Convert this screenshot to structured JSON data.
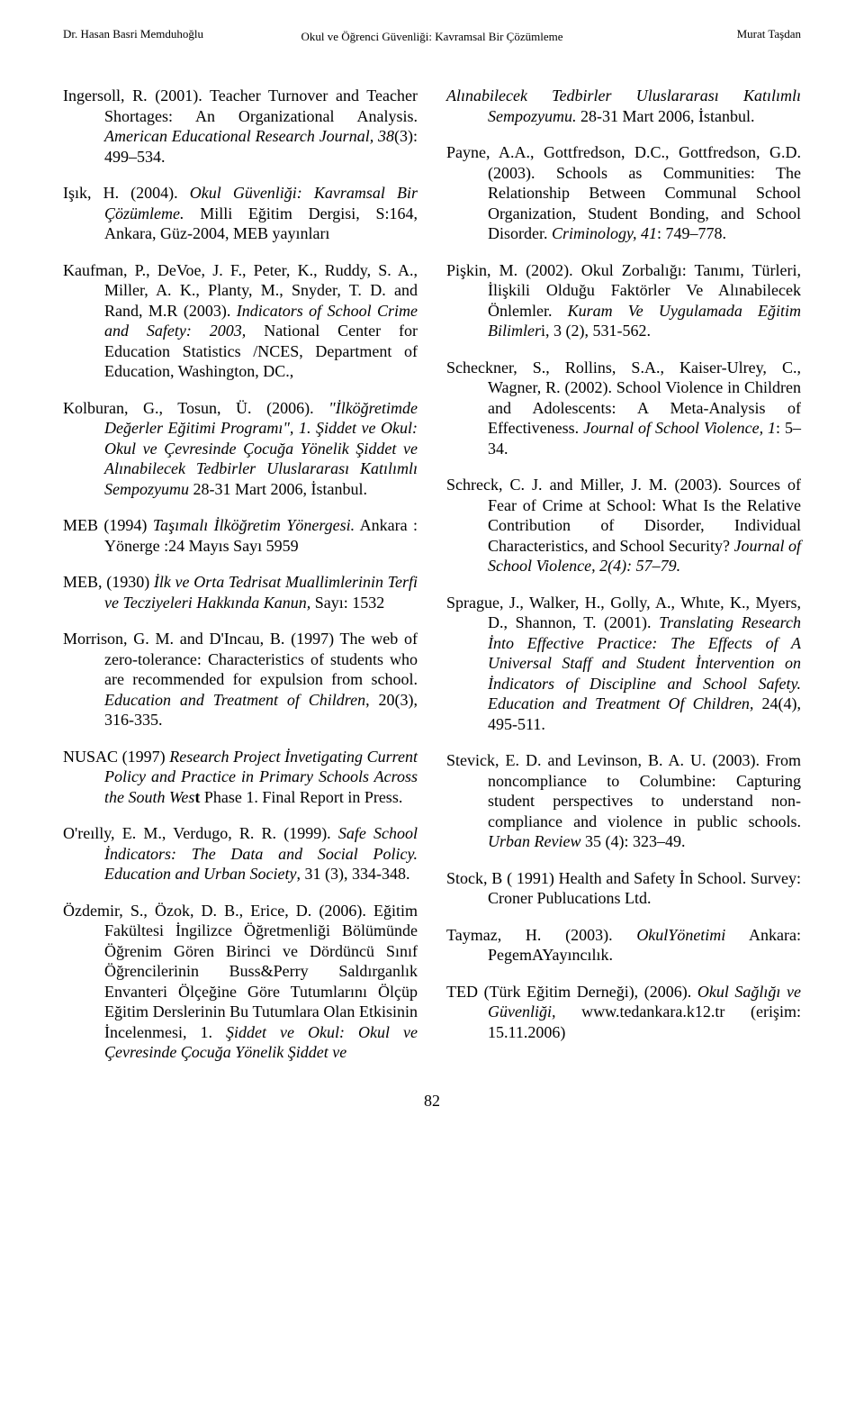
{
  "header": {
    "left": "Dr. Hasan Basri Memduhoğlu",
    "center": "Okul ve Öğrenci Güvenliği: Kavramsal Bir Çözümleme",
    "right": "Murat Taşdan"
  },
  "pageNumber": "82",
  "leftRefs": [
    "Ingersoll, R. (2001). Teacher Turnover and Teacher Shortages: An Organizational Analysis. <i>American Educational Research Journal, 38</i>(3): 499–534.",
    "Işık, H. (2004). <i>Okul Güvenliği: Kavramsal Bir Çözümleme.</i> Milli Eğitim Dergisi, S:164, Ankara, Güz-2004, MEB yayınları",
    "Kaufman, P., DeVoe, J. F., Peter, K., Ruddy, S. A., Miller, A. K., Planty, M., Snyder, T. D. and Rand, M.R (2003). <i>Indicators of School Crime and Safety: 2003,</i> National Center for Education Statistics /NCES, Department of Education, Washington, DC.,",
    "Kolburan, G., Tosun, Ü. (2006). <i>\"İlköğretimde Değerler Eğitimi Programı\", 1. Şiddet ve Okul: Okul ve Çevresinde Çocuğa Yönelik Şiddet ve Alınabilecek Tedbirler Uluslararası Katılımlı Sempozyumu</i> 28-31 Mart 2006, İstanbul.",
    "MEB (1994) <i>Taşımalı İlköğretim Yönergesi.</i> Ankara : Yönerge :24 Mayıs Sayı 5959",
    "MEB, (1930) <i>İlk ve Orta Tedrisat Muallimlerinin Terfi ve Tecziyeleri Hakkında Kanun,</i> Sayı: 1532",
    "Morrison, G. M. and D'Incau, B. (1997) The web of zero-tolerance: Characteristics of students who are recommended for expulsion from school. <i>Education and Treatment of Children</i>, 20(3), 316-335.",
    "NUSAC (1997) <i>Research Project İnvetigating Current Policy and Practice in Primary Schools Across the South Wes</i><b>t</b> Phase 1. Final Report in Press.",
    "O'reılly, E. M., Verdugo, R. R. (1999). <i>Safe School İndicators: The Data and Social Policy. Education and Urban Society</i>, 31 (3), 334-348.",
    "Özdemir, S., Özok, D. B., Erice, D. (2006). Eğitim Fakültesi İngilizce Öğretmenliği Bölümünde Öğrenim Gören Birinci ve Dördüncü Sınıf Öğrencilerinin Buss&Perry Saldırganlık Envanteri Ölçeğine Göre Tutumlarını Ölçüp Eğitim Derslerinin Bu Tutumlara Olan Etkisinin İncelenmesi, 1. <i>Şiddet ve Okul: Okul ve Çevresinde Çocuğa Yönelik Şiddet ve</i>"
  ],
  "rightRefs": [
    "<i>Alınabilecek Tedbirler Uluslararası Katılımlı Sempozyumu.</i> 28-31 Mart 2006, İstanbul.",
    "Payne, A.A., Gottfredson, D.C., Gottfredson, G.D. (2003). Schools as Communities: The Relationship Between Communal School Organization, Student Bonding, and School Disorder. <i>Criminology, 41</i>: 749–778.",
    "Pişkin, M. (2002). Okul Zorbalığı: Tanımı, Türleri, İlişkili Olduğu Faktörler Ve Alınabilecek Önlemler. <i>Kuram Ve Uygulamada Eğitim Bilimler</i>i, 3 (2), 531-562.",
    "Scheckner, S., Rollins, S.A., Kaiser-Ulrey, C., Wagner, R. (2002). School Violence in Children and Adolescents: A Meta-Analysis of Effectiveness. <i>Journal of School Violence, 1</i>: 5–34.",
    "Schreck, C. J. and Miller, J. M. (2003). Sources of Fear of Crime at School: What Is the Relative Contribution of Disorder, Individual Characteristics, and School Security? <i>Journal of School Violence, 2(4): 57–79.</i>",
    "Sprague, J., Walker, H., Golly, A., Whıte, K., Myers, D., Shannon, T. (2001). <i>Translating Research İnto Effective Practice: The Effects of A Universal Staff and Student İntervention on İndicators of Discipline and School Safety. Education and Treatment Of Children,</i> 24(4), 495-511.",
    "Stevick, E. D. and Levinson, B. A. U. (2003). From noncompliance to Columbine: Capturing student perspectives to understand non-compliance and violence in public schools. <i>Urban Review</i> 35 (4): 323–49.",
    "Stock, B ( 1991) Health and Safety İn School. Survey: Croner Publucations Ltd.",
    "Taymaz, H. (2003). <i>OkulYönetimi</i> Ankara: PegemAYayıncılık.",
    "TED (Türk Eğitim Derneği), (2006). <i>Okul Sağlığı ve Güvenliği,</i> www.tedankara.k12.tr (erişim: 15.11.2006)"
  ]
}
